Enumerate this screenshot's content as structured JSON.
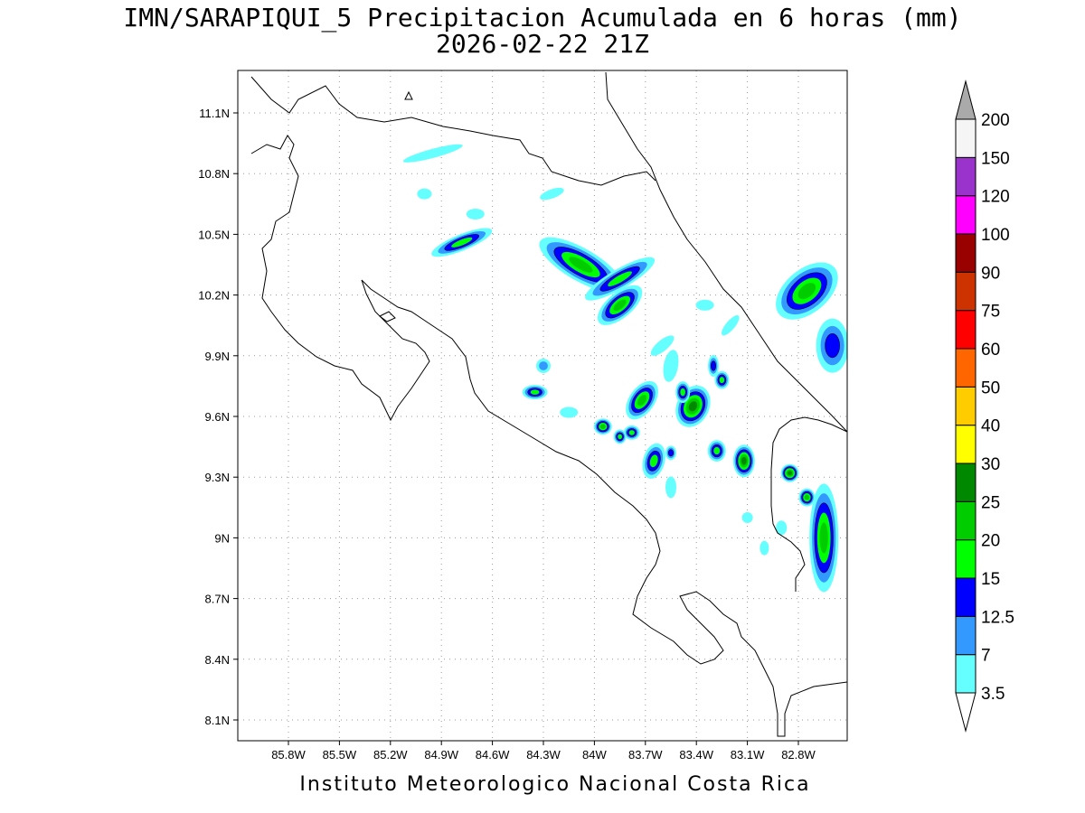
{
  "title": {
    "line1": "IMN/SARAPIQUI_5 Precipitacion Acumulada en 6 horas (mm)",
    "line2": "2026-02-22 21Z"
  },
  "credit": "Instituto Meteorologico Nacional Costa Rica",
  "map": {
    "projection": "lat-lon",
    "lon_range": [
      -86.05,
      -83.05
    ],
    "lat_range": [
      8.0,
      11.3
    ],
    "grid": true,
    "lon_ticks": [
      {
        "value": -85.8,
        "label": "85.8W"
      },
      {
        "value": -85.5,
        "label": "85.5W"
      },
      {
        "value": -85.2,
        "label": "85.2W"
      },
      {
        "value": -84.9,
        "label": "84.9W"
      },
      {
        "value": -84.6,
        "label": "84.6W"
      },
      {
        "value": -84.3,
        "label": "84.3W"
      },
      {
        "value": -84.0,
        "label": "84W"
      },
      {
        "value": -83.7,
        "label": "83.7W"
      },
      {
        "value": -83.4,
        "label": "83.4W"
      },
      {
        "value": -83.1,
        "label": "83.1W"
      },
      {
        "value": -82.8,
        "label": "82.8W"
      }
    ],
    "lat_ticks": [
      {
        "value": 8.1,
        "label": "8.1N"
      },
      {
        "value": 8.4,
        "label": "8.4N"
      },
      {
        "value": 8.7,
        "label": "8.7N"
      },
      {
        "value": 9.0,
        "label": "9N"
      },
      {
        "value": 9.3,
        "label": "9.3N"
      },
      {
        "value": 9.6,
        "label": "9.6N"
      },
      {
        "value": 9.9,
        "label": "9.9N"
      },
      {
        "value": 10.2,
        "label": "10.2N"
      },
      {
        "value": 10.5,
        "label": "10.5N"
      },
      {
        "value": 10.8,
        "label": "10.8N"
      },
      {
        "value": 11.1,
        "label": "11.1N"
      }
    ]
  },
  "colorbar": {
    "levels": [
      "3.5",
      "7",
      "12.5",
      "15",
      "20",
      "25",
      "30",
      "40",
      "50",
      "60",
      "75",
      "90",
      "100",
      "120",
      "150",
      "200"
    ],
    "colors": [
      "#66ffff",
      "#3399ff",
      "#0000ff",
      "#00ff00",
      "#00cc00",
      "#008800",
      "#ffff00",
      "#ffcc00",
      "#ff6600",
      "#ff0000",
      "#cc3300",
      "#990000",
      "#ff00ff",
      "#9933cc",
      "#f5f5f5",
      "#aaaaaa"
    ],
    "top_arrow_color": "#aaaaaa",
    "bottom_arrow_color": "#ffffff"
  },
  "cells": [
    {
      "lon": -84.95,
      "lat": 10.9,
      "rx": 34,
      "ry": 5,
      "rot": -15,
      "max": 1
    },
    {
      "lon": -84.78,
      "lat": 10.46,
      "rx": 36,
      "ry": 9,
      "rot": -22,
      "max": 4
    },
    {
      "lon": -84.08,
      "lat": 10.35,
      "rx": 52,
      "ry": 18,
      "rot": 30,
      "max": 5
    },
    {
      "lon": -83.85,
      "lat": 10.28,
      "rx": 44,
      "ry": 11,
      "rot": -30,
      "max": 4
    },
    {
      "lon": -83.85,
      "lat": 10.15,
      "rx": 30,
      "ry": 14,
      "rot": -40,
      "max": 5
    },
    {
      "lon": -84.35,
      "lat": 9.72,
      "rx": 14,
      "ry": 8,
      "rot": 0,
      "max": 4
    },
    {
      "lon": -83.72,
      "lat": 9.68,
      "rx": 14,
      "ry": 24,
      "rot": 35,
      "max": 5
    },
    {
      "lon": -83.42,
      "lat": 9.65,
      "rx": 18,
      "ry": 24,
      "rot": 25,
      "max": 6
    },
    {
      "lon": -83.95,
      "lat": 9.55,
      "rx": 10,
      "ry": 9,
      "rot": 0,
      "max": 5
    },
    {
      "lon": -83.65,
      "lat": 9.38,
      "rx": 12,
      "ry": 20,
      "rot": 15,
      "max": 4
    },
    {
      "lon": -83.28,
      "lat": 9.43,
      "rx": 10,
      "ry": 12,
      "rot": 0,
      "max": 4
    },
    {
      "lon": -83.12,
      "lat": 9.38,
      "rx": 12,
      "ry": 18,
      "rot": 0,
      "max": 6
    },
    {
      "lon": -83.55,
      "lat": 9.85,
      "rx": 8,
      "ry": 18,
      "rot": 10,
      "max": 1
    },
    {
      "lon": -82.85,
      "lat": 9.32,
      "rx": 10,
      "ry": 10,
      "rot": 0,
      "max": 6
    },
    {
      "lon": -82.75,
      "lat": 9.2,
      "rx": 9,
      "ry": 10,
      "rot": 0,
      "max": 5
    },
    {
      "lon": -82.65,
      "lat": 9.0,
      "rx": 16,
      "ry": 60,
      "rot": 0,
      "max": 5
    },
    {
      "lon": -82.75,
      "lat": 10.22,
      "rx": 40,
      "ry": 24,
      "rot": -40,
      "max": 5
    },
    {
      "lon": -82.6,
      "lat": 9.95,
      "rx": 18,
      "ry": 30,
      "rot": 0,
      "max": 3
    },
    {
      "lon": -83.3,
      "lat": 9.85,
      "rx": 6,
      "ry": 12,
      "rot": 0,
      "max": 3
    },
    {
      "lon": -83.25,
      "lat": 9.78,
      "rx": 8,
      "ry": 10,
      "rot": 0,
      "max": 4
    },
    {
      "lon": -83.78,
      "lat": 9.52,
      "rx": 9,
      "ry": 8,
      "rot": 0,
      "max": 4
    },
    {
      "lon": -83.85,
      "lat": 9.5,
      "rx": 7,
      "ry": 8,
      "rot": 0,
      "max": 4
    },
    {
      "lon": -83.55,
      "lat": 9.42,
      "rx": 6,
      "ry": 8,
      "rot": 0,
      "max": 3
    },
    {
      "lon": -83.48,
      "lat": 9.72,
      "rx": 8,
      "ry": 12,
      "rot": 0,
      "max": 4
    },
    {
      "lon": -84.15,
      "lat": 9.62,
      "rx": 10,
      "ry": 6,
      "rot": 0,
      "max": 1
    },
    {
      "lon": -84.3,
      "lat": 9.85,
      "rx": 8,
      "ry": 8,
      "rot": 0,
      "max": 2
    },
    {
      "lon": -84.7,
      "lat": 10.6,
      "rx": 10,
      "ry": 6,
      "rot": 0,
      "max": 1
    },
    {
      "lon": -85.0,
      "lat": 10.7,
      "rx": 8,
      "ry": 6,
      "rot": 0,
      "max": 1
    },
    {
      "lon": -84.25,
      "lat": 10.7,
      "rx": 14,
      "ry": 5,
      "rot": -20,
      "max": 1
    },
    {
      "lon": -83.6,
      "lat": 9.95,
      "rx": 16,
      "ry": 6,
      "rot": -40,
      "max": 1
    },
    {
      "lon": -83.2,
      "lat": 10.05,
      "rx": 14,
      "ry": 5,
      "rot": -50,
      "max": 1
    },
    {
      "lon": -83.35,
      "lat": 10.15,
      "rx": 10,
      "ry": 6,
      "rot": 0,
      "max": 1
    },
    {
      "lon": -83.1,
      "lat": 9.1,
      "rx": 6,
      "ry": 6,
      "rot": 0,
      "max": 1
    },
    {
      "lon": -82.9,
      "lat": 9.05,
      "rx": 6,
      "ry": 8,
      "rot": 0,
      "max": 1
    },
    {
      "lon": -83.55,
      "lat": 9.25,
      "rx": 6,
      "ry": 12,
      "rot": 0,
      "max": 1
    },
    {
      "lon": -83.0,
      "lat": 8.95,
      "rx": 5,
      "ry": 8,
      "rot": 0,
      "max": 1
    }
  ]
}
